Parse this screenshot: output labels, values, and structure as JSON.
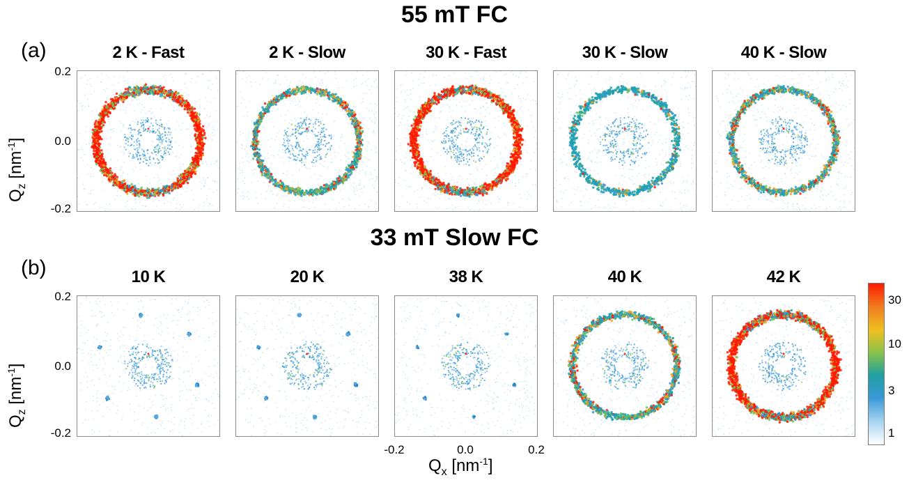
{
  "figure": {
    "row_a_title": "55 mT FC",
    "row_b_title": "33 mT Slow FC",
    "label_a": "(a)",
    "label_b": "(b)"
  },
  "axes": {
    "y_label_main": "Q",
    "y_label_sub": "z",
    "y_label_unit_open": " [nm",
    "y_label_exp": "-1",
    "y_label_unit_close": "]",
    "x_label_main": "Q",
    "x_label_sub": "x",
    "x_label_unit_open": " [nm",
    "x_label_exp": "-1",
    "x_label_unit_close": "]",
    "ytick_labels": [
      "0.2",
      "0.0",
      "-0.2"
    ],
    "xtick_labels": [
      "-0.2",
      "0.0",
      "0.2"
    ]
  },
  "chart_data": {
    "type": "heatmap",
    "description_axes": {
      "x": "Qx [nm^-1]",
      "y": "Qz [nm^-1]"
    },
    "xlim": [
      -0.2,
      0.2
    ],
    "ylim": [
      -0.2,
      0.2
    ],
    "colorbar": {
      "scale": "log",
      "ticks": [
        1,
        3,
        10,
        30
      ],
      "tick_labels": [
        "1",
        "3",
        "10",
        "30"
      ],
      "colors": [
        "#ffffff",
        "#a8d4f0",
        "#3a98d8",
        "#1fa0a0",
        "#88c24a",
        "#f0c020",
        "#f07a20",
        "#ff1a00"
      ]
    },
    "panels": [
      {
        "row": "a",
        "title": "2 K - Fast",
        "ring": "strong",
        "ring_radius": 0.147
      },
      {
        "row": "a",
        "title": "2 K - Slow",
        "ring": "medium",
        "ring_radius": 0.147
      },
      {
        "row": "a",
        "title": "30 K - Fast",
        "ring": "strong",
        "ring_radius": 0.147
      },
      {
        "row": "a",
        "title": "30 K - Slow",
        "ring": "weak",
        "ring_radius": 0.147
      },
      {
        "row": "a",
        "title": "40 K - Slow",
        "ring": "medium",
        "ring_radius": 0.147
      },
      {
        "row": "b",
        "title": "10 K",
        "ring": "spots",
        "ring_radius": 0.147
      },
      {
        "row": "b",
        "title": "20 K",
        "ring": "spots",
        "ring_radius": 0.147
      },
      {
        "row": "b",
        "title": "38 K",
        "ring": "faintspots",
        "ring_radius": 0.147
      },
      {
        "row": "b",
        "title": "40 K",
        "ring": "medium",
        "ring_radius": 0.147
      },
      {
        "row": "b",
        "title": "42 K",
        "ring": "strong",
        "ring_radius": 0.147
      }
    ]
  }
}
